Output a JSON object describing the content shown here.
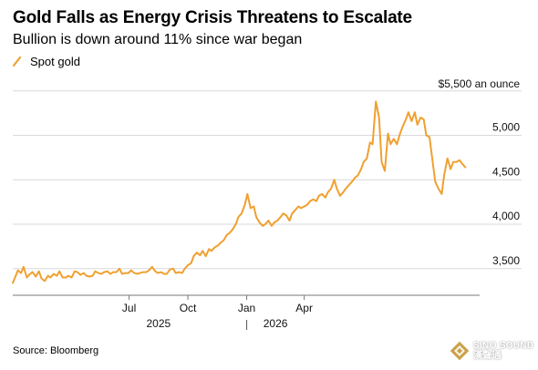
{
  "chart_data": {
    "type": "line",
    "title": "Gold Falls as Energy Crisis Threatens to Escalate",
    "subtitle": "Bullion is down around 11% since war began",
    "series": [
      {
        "name": "Spot gold",
        "color": "#F0A030",
        "points": [
          [
            "2024-12-31",
            3340
          ],
          [
            "2025-01-03",
            3390
          ],
          [
            "2025-01-08",
            3480
          ],
          [
            "2025-01-13",
            3450
          ],
          [
            "2025-01-17",
            3520
          ],
          [
            "2025-01-22",
            3400
          ],
          [
            "2025-01-27",
            3440
          ],
          [
            "2025-01-31",
            3460
          ],
          [
            "2025-02-05",
            3410
          ],
          [
            "2025-02-10",
            3470
          ],
          [
            "2025-02-14",
            3390
          ],
          [
            "2025-02-19",
            3360
          ],
          [
            "2025-02-24",
            3420
          ],
          [
            "2025-02-28",
            3400
          ],
          [
            "2025-03-05",
            3440
          ],
          [
            "2025-03-10",
            3420
          ],
          [
            "2025-03-14",
            3470
          ],
          [
            "2025-03-19",
            3400
          ],
          [
            "2025-03-24",
            3400
          ],
          [
            "2025-03-28",
            3420
          ],
          [
            "2025-04-02",
            3400
          ],
          [
            "2025-04-07",
            3470
          ],
          [
            "2025-04-11",
            3460
          ],
          [
            "2025-04-16",
            3430
          ],
          [
            "2025-04-21",
            3450
          ],
          [
            "2025-04-25",
            3420
          ],
          [
            "2025-04-30",
            3410
          ],
          [
            "2025-05-05",
            3420
          ],
          [
            "2025-05-09",
            3470
          ],
          [
            "2025-05-14",
            3450
          ],
          [
            "2025-05-19",
            3440
          ],
          [
            "2025-05-23",
            3460
          ],
          [
            "2025-05-28",
            3470
          ],
          [
            "2025-06-02",
            3440
          ],
          [
            "2025-06-06",
            3460
          ],
          [
            "2025-06-11",
            3460
          ],
          [
            "2025-06-16",
            3500
          ],
          [
            "2025-06-20",
            3440
          ],
          [
            "2025-06-25",
            3450
          ],
          [
            "2025-06-30",
            3450
          ],
          [
            "2025-07-04",
            3480
          ],
          [
            "2025-07-09",
            3450
          ],
          [
            "2025-07-14",
            3440
          ],
          [
            "2025-07-18",
            3450
          ],
          [
            "2025-07-23",
            3460
          ],
          [
            "2025-07-28",
            3460
          ],
          [
            "2025-08-01",
            3480
          ],
          [
            "2025-08-06",
            3520
          ],
          [
            "2025-08-11",
            3470
          ],
          [
            "2025-08-15",
            3450
          ],
          [
            "2025-08-20",
            3460
          ],
          [
            "2025-08-25",
            3440
          ],
          [
            "2025-08-29",
            3440
          ],
          [
            "2025-09-03",
            3490
          ],
          [
            "2025-09-08",
            3500
          ],
          [
            "2025-09-12",
            3450
          ],
          [
            "2025-09-17",
            3460
          ],
          [
            "2025-09-22",
            3450
          ],
          [
            "2025-09-26",
            3500
          ],
          [
            "2025-10-01",
            3540
          ],
          [
            "2025-10-06",
            3560
          ],
          [
            "2025-10-10",
            3640
          ],
          [
            "2025-10-15",
            3680
          ],
          [
            "2025-10-20",
            3650
          ],
          [
            "2025-10-24",
            3700
          ],
          [
            "2025-10-29",
            3640
          ],
          [
            "2025-11-03",
            3720
          ],
          [
            "2025-11-07",
            3700
          ],
          [
            "2025-11-12",
            3740
          ],
          [
            "2025-11-17",
            3760
          ],
          [
            "2025-11-21",
            3790
          ],
          [
            "2025-11-26",
            3820
          ],
          [
            "2025-12-01",
            3880
          ],
          [
            "2025-12-05",
            3900
          ],
          [
            "2025-12-10",
            3940
          ],
          [
            "2025-12-15",
            4000
          ],
          [
            "2025-12-19",
            4080
          ],
          [
            "2025-12-24",
            4120
          ],
          [
            "2025-12-29",
            4220
          ],
          [
            "2026-01-02",
            4340
          ],
          [
            "2026-01-07",
            4180
          ],
          [
            "2026-01-12",
            4200
          ],
          [
            "2026-01-16",
            4080
          ],
          [
            "2026-01-21",
            4020
          ],
          [
            "2026-01-26",
            3980
          ],
          [
            "2026-01-30",
            4000
          ],
          [
            "2026-02-04",
            4040
          ],
          [
            "2026-02-09",
            3980
          ],
          [
            "2026-02-13",
            4020
          ],
          [
            "2026-02-18",
            4040
          ],
          [
            "2026-02-23",
            4080
          ],
          [
            "2026-02-27",
            4120
          ],
          [
            "2026-03-04",
            4100
          ],
          [
            "2026-03-09",
            4040
          ],
          [
            "2026-03-13",
            4120
          ],
          [
            "2026-03-18",
            4160
          ],
          [
            "2026-03-23",
            4200
          ],
          [
            "2026-03-27",
            4180
          ],
          [
            "2026-04-01",
            4200
          ],
          [
            "2026-04-06",
            4220
          ],
          [
            "2026-04-10",
            4260
          ],
          [
            "2026-04-15",
            4280
          ],
          [
            "2026-04-20",
            4260
          ],
          [
            "2026-04-24",
            4320
          ],
          [
            "2026-04-29",
            4340
          ],
          [
            "2026-05-04",
            4300
          ],
          [
            "2026-05-08",
            4360
          ],
          [
            "2026-05-13",
            4400
          ],
          [
            "2026-05-18",
            4500
          ],
          [
            "2026-05-22",
            4400
          ],
          [
            "2026-05-27",
            4320
          ],
          [
            "2026-06-01",
            4360
          ],
          [
            "2026-06-05",
            4400
          ],
          [
            "2026-06-10",
            4440
          ],
          [
            "2026-06-15",
            4480
          ],
          [
            "2026-06-19",
            4520
          ],
          [
            "2026-06-24",
            4550
          ],
          [
            "2026-06-29",
            4620
          ],
          [
            "2026-07-03",
            4700
          ],
          [
            "2026-07-08",
            4740
          ],
          [
            "2026-07-13",
            4920
          ],
          [
            "2026-07-17",
            4900
          ],
          [
            "2026-07-22",
            5380
          ],
          [
            "2026-07-27",
            5200
          ],
          [
            "2026-07-31",
            4700
          ],
          [
            "2026-08-05",
            4600
          ],
          [
            "2026-08-10",
            5020
          ],
          [
            "2026-08-14",
            4900
          ],
          [
            "2026-08-19",
            4960
          ],
          [
            "2026-08-24",
            4900
          ],
          [
            "2026-08-28",
            5000
          ],
          [
            "2026-09-02",
            5100
          ],
          [
            "2026-09-07",
            5180
          ],
          [
            "2026-09-11",
            5260
          ],
          [
            "2026-09-16",
            5160
          ],
          [
            "2026-09-21",
            5260
          ],
          [
            "2026-09-25",
            5120
          ],
          [
            "2026-09-30",
            5200
          ],
          [
            "2026-10-05",
            5180
          ],
          [
            "2026-10-09",
            5000
          ],
          [
            "2026-10-14",
            4980
          ],
          [
            "2026-10-19",
            4700
          ],
          [
            "2026-10-23",
            4480
          ],
          [
            "2026-10-28",
            4400
          ],
          [
            "2026-11-02",
            4340
          ],
          [
            "2026-11-06",
            4560
          ],
          [
            "2026-11-11",
            4740
          ],
          [
            "2026-11-16",
            4620
          ],
          [
            "2026-11-20",
            4700
          ],
          [
            "2026-11-25",
            4700
          ],
          [
            "2026-11-30",
            4720
          ],
          [
            "2026-12-04",
            4680
          ],
          [
            "2026-12-09",
            4640
          ]
        ]
      }
    ],
    "ylim": [
      3200,
      5600
    ],
    "yticks": [
      3500,
      4000,
      4500,
      5000,
      5500
    ],
    "ytick_labels": [
      "3,500",
      "4,000",
      "4,500",
      "5,000",
      "$5,500 an ounce"
    ],
    "xticks": [
      {
        "date": "2025-07-01",
        "label": "Jul"
      },
      {
        "date": "2025-10-01",
        "label": "Oct"
      },
      {
        "date": "2026-01-01",
        "label": "Jan"
      },
      {
        "date": "2026-04-01",
        "label": "Apr"
      }
    ],
    "year_labels": [
      {
        "label": "2025",
        "between": [
          "2025-07-01",
          "2025-10-01"
        ]
      },
      {
        "label": "2026",
        "between": [
          "2026-01-01",
          "2026-04-01"
        ]
      }
    ],
    "xlim": [
      "2024-12-31",
      "2026-12-20"
    ],
    "grid": true,
    "legend_position": "top-left",
    "source": "Source: Bloomberg"
  },
  "watermark": {
    "text_line1": "SINO SOUND",
    "text_line2": "漢聲通",
    "logo_color": "#c9a14a"
  }
}
